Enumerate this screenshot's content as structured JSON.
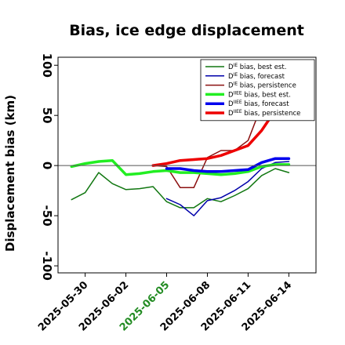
{
  "chart_data": {
    "type": "line",
    "title": "Bias, ice edge displacement",
    "xlabel": "",
    "ylabel": "Displacement bias (km)",
    "ylim": [
      -107,
      108
    ],
    "yticks": [
      100,
      50,
      0,
      -50,
      -100
    ],
    "xlim": [
      "2025-05-28",
      "2025-06-16"
    ],
    "xticks": [
      "2025-05-30",
      "2025-06-02",
      "2025-06-05",
      "2025-06-08",
      "2025-06-11",
      "2025-06-14"
    ],
    "highlighted_xtick": "2025-06-05",
    "xtick_color": "#000000",
    "highlight_color": "#228b22",
    "reference_line": 0,
    "grid": false,
    "legend_position": "top-right",
    "series": [
      {
        "name": "D bias, best est.",
        "name_base": "D",
        "name_sup": "IE",
        "name_rest": " bias, best est.",
        "color": "#117711",
        "width": 1.5,
        "x": [
          "2025-05-29",
          "2025-05-30",
          "2025-05-31",
          "2025-06-01",
          "2025-06-02",
          "2025-06-03",
          "2025-06-04",
          "2025-06-05",
          "2025-06-06",
          "2025-06-07",
          "2025-06-08",
          "2025-06-09",
          "2025-06-10",
          "2025-06-11",
          "2025-06-12",
          "2025-06-13",
          "2025-06-14"
        ],
        "y": [
          -34,
          -27,
          -7,
          -18,
          -24,
          -23,
          -21,
          -36,
          -42,
          -42,
          -33,
          -36,
          -30,
          -23,
          -10,
          -3,
          -7
        ]
      },
      {
        "name": "D bias, forecast",
        "name_base": "D",
        "name_sup": "IE",
        "name_rest": " bias, forecast",
        "color": "#0000aa",
        "width": 1.5,
        "x": [
          "2025-06-05",
          "2025-06-06",
          "2025-06-07",
          "2025-06-08",
          "2025-06-09",
          "2025-06-10",
          "2025-06-11",
          "2025-06-12",
          "2025-06-13",
          "2025-06-14"
        ],
        "y": [
          -33,
          -39,
          -50,
          -35,
          -32,
          -25,
          -16,
          -3,
          3,
          4
        ]
      },
      {
        "name": "D bias, persistence",
        "name_base": "D",
        "name_sup": "IE",
        "name_rest": " bias, persistence",
        "color": "#8b1010",
        "width": 1.5,
        "x": [
          "2025-06-04",
          "2025-06-05",
          "2025-06-06",
          "2025-06-07",
          "2025-06-08",
          "2025-06-09",
          "2025-06-10",
          "2025-06-11",
          "2025-06-12",
          "2025-06-13"
        ],
        "y": [
          0,
          -1,
          -22,
          -22,
          8,
          15,
          15,
          25,
          60,
          56
        ]
      },
      {
        "name": "D bias, best est.",
        "name_base": "D",
        "name_sup": "IIEE",
        "name_rest": " bias, best est.",
        "color": "#22ee22",
        "width": 3.5,
        "x": [
          "2025-05-29",
          "2025-05-30",
          "2025-05-31",
          "2025-06-01",
          "2025-06-02",
          "2025-06-03",
          "2025-06-04",
          "2025-06-05",
          "2025-06-06",
          "2025-06-07",
          "2025-06-08",
          "2025-06-09",
          "2025-06-10",
          "2025-06-11",
          "2025-06-12",
          "2025-06-13",
          "2025-06-14"
        ],
        "y": [
          -1,
          2,
          4,
          5,
          -9,
          -8,
          -6,
          -5,
          -7,
          -7,
          -8,
          -9,
          -8,
          -6,
          -1,
          1,
          1
        ]
      },
      {
        "name": "D bias, forecast",
        "name_base": "D",
        "name_sup": "IIEE",
        "name_rest": " bias, forecast",
        "color": "#0000ee",
        "width": 3.5,
        "x": [
          "2025-06-05",
          "2025-06-06",
          "2025-06-07",
          "2025-06-08",
          "2025-06-09",
          "2025-06-10",
          "2025-06-11",
          "2025-06-12",
          "2025-06-13",
          "2025-06-14"
        ],
        "y": [
          -3,
          -3,
          -5,
          -6,
          -6,
          -5,
          -4,
          3,
          7,
          7
        ]
      },
      {
        "name": "D bias, persistence",
        "name_base": "D",
        "name_sup": "IIEE",
        "name_rest": " bias, persistence",
        "color": "#ee0000",
        "width": 3.5,
        "x": [
          "2025-06-04",
          "2025-06-05",
          "2025-06-06",
          "2025-06-07",
          "2025-06-08",
          "2025-06-09",
          "2025-06-10",
          "2025-06-11",
          "2025-06-12",
          "2025-06-13"
        ],
        "y": [
          0,
          2,
          5,
          6,
          7,
          10,
          15,
          20,
          35,
          55
        ]
      }
    ]
  }
}
